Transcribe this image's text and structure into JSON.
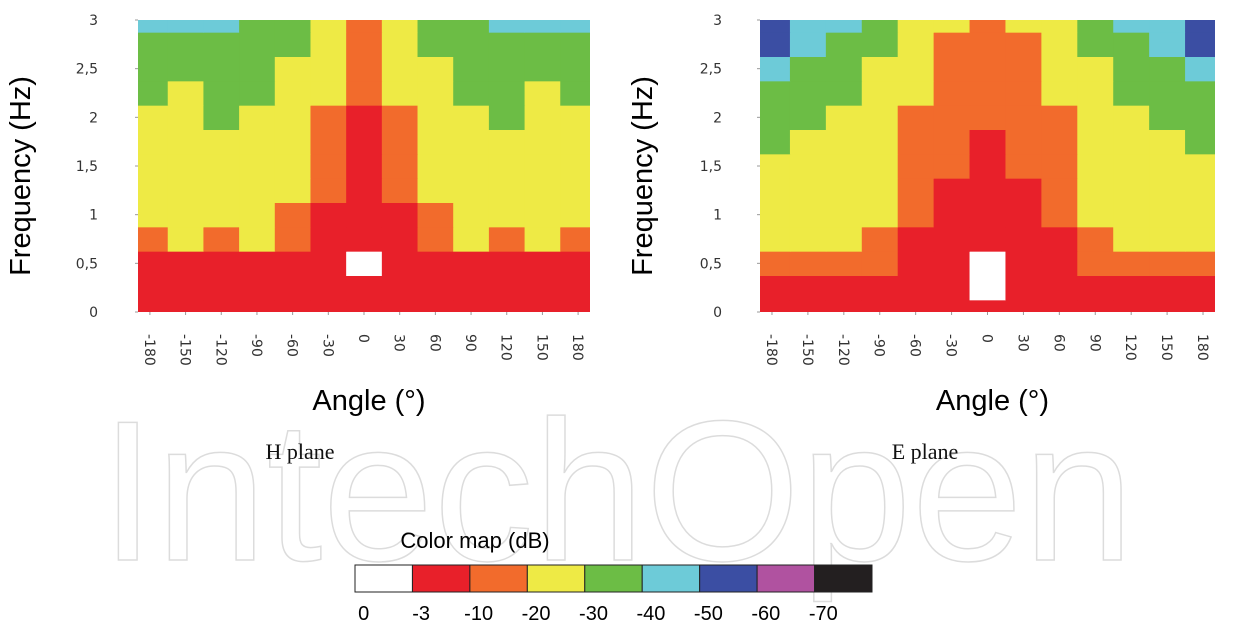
{
  "chart_data": [
    {
      "type": "heatmap",
      "subtitle": "H plane",
      "x_label": "Angle (°)",
      "y_label": "Frequency (Hz)",
      "x": [
        -180,
        -150,
        -120,
        -90,
        -60,
        -30,
        0,
        30,
        60,
        90,
        120,
        150,
        180
      ],
      "y": [
        0,
        0.25,
        0.5,
        0.75,
        1,
        1.25,
        1.5,
        1.75,
        2,
        2.25,
        2.5,
        2.75,
        3
      ],
      "values": [
        [
          -6,
          -6,
          -5,
          -5,
          -5,
          -5,
          -5,
          -5,
          -5,
          -5,
          -5,
          -6,
          -6
        ],
        [
          -5,
          -5,
          -5,
          -4,
          -4,
          -4,
          -4,
          -4,
          -4,
          -4,
          -5,
          -5,
          -5
        ],
        [
          -8,
          -8,
          -7,
          -6,
          -5,
          -4,
          -1,
          -4,
          -5,
          -6,
          -7,
          -8,
          -8
        ],
        [
          -15,
          -22,
          -18,
          -22,
          -15,
          -8,
          -4,
          -8,
          -15,
          -22,
          -18,
          -22,
          -15
        ],
        [
          -22,
          -25,
          -25,
          -25,
          -18,
          -9,
          -5,
          -9,
          -18,
          -25,
          -25,
          -25,
          -22
        ],
        [
          -25,
          -25,
          -25,
          -25,
          -22,
          -12,
          -6,
          -12,
          -22,
          -25,
          -25,
          -25,
          -25
        ],
        [
          -25,
          -27,
          -25,
          -27,
          -25,
          -15,
          -7,
          -15,
          -25,
          -27,
          -25,
          -27,
          -25
        ],
        [
          -26,
          -26,
          -26,
          -26,
          -26,
          -18,
          -8,
          -18,
          -26,
          -26,
          -26,
          -26,
          -26
        ],
        [
          -28,
          -26,
          -32,
          -28,
          -26,
          -18,
          -9,
          -18,
          -26,
          -28,
          -32,
          -26,
          -28
        ],
        [
          -30,
          -28,
          -32,
          -30,
          -27,
          -20,
          -12,
          -20,
          -27,
          -30,
          -32,
          -28,
          -30
        ],
        [
          -35,
          -32,
          -35,
          -32,
          -28,
          -22,
          -12,
          -22,
          -28,
          -32,
          -35,
          -32,
          -35
        ],
        [
          -38,
          -38,
          -38,
          -35,
          -30,
          -24,
          -15,
          -24,
          -30,
          -35,
          -38,
          -38,
          -38
        ],
        [
          -45,
          -45,
          -42,
          -38,
          -32,
          -25,
          -18,
          -25,
          -32,
          -38,
          -42,
          -45,
          -45
        ]
      ],
      "xlim": [
        -190,
        190
      ],
      "ylim": [
        0,
        3
      ],
      "xticks": [
        -180,
        -150,
        -120,
        -90,
        -60,
        -30,
        0,
        30,
        60,
        90,
        120,
        150,
        180
      ],
      "yticks": [
        0,
        {
          "value": 0.5,
          "label": "0,5"
        },
        1,
        {
          "value": 1.5,
          "label": "1,5"
        },
        2,
        {
          "value": 2.5,
          "label": "2,5"
        },
        3
      ]
    },
    {
      "type": "heatmap",
      "subtitle": "E plane",
      "x_label": "Angle (°)",
      "y_label": "Frequency (Hz)",
      "x": [
        -180,
        -150,
        -120,
        -90,
        -60,
        -30,
        0,
        30,
        60,
        90,
        120,
        150,
        180
      ],
      "y": [
        0,
        0.25,
        0.5,
        0.75,
        1,
        1.25,
        1.5,
        1.75,
        2,
        2.25,
        2.5,
        2.75,
        3
      ],
      "values": [
        [
          -8,
          -8,
          -6,
          -5,
          -5,
          -5,
          -5,
          -5,
          -5,
          -5,
          -6,
          -8,
          -8
        ],
        [
          -8,
          -8,
          -8,
          -6,
          -5,
          -4,
          -2,
          -4,
          -5,
          -6,
          -8,
          -8,
          -8
        ],
        [
          -18,
          -15,
          -15,
          -10,
          -6,
          -4,
          -1,
          -4,
          -6,
          -10,
          -15,
          -15,
          -18
        ],
        [
          -22,
          -25,
          -22,
          -15,
          -9,
          -5,
          -3,
          -5,
          -9,
          -15,
          -22,
          -25,
          -22
        ],
        [
          -28,
          -25,
          -25,
          -20,
          -12,
          -8,
          -5,
          -8,
          -12,
          -20,
          -25,
          -25,
          -28
        ],
        [
          -28,
          -26,
          -25,
          -22,
          -15,
          -9,
          -6,
          -9,
          -15,
          -22,
          -25,
          -26,
          -28
        ],
        [
          -28,
          -27,
          -26,
          -24,
          -16,
          -10,
          -7,
          -10,
          -16,
          -24,
          -26,
          -27,
          -28
        ],
        [
          -30,
          -28,
          -27,
          -25,
          -18,
          -12,
          -9,
          -12,
          -18,
          -25,
          -27,
          -28,
          -30
        ],
        [
          -33,
          -32,
          -28,
          -26,
          -19,
          -14,
          -10,
          -14,
          -19,
          -26,
          -28,
          -32,
          -33
        ],
        [
          -35,
          -33,
          -30,
          -27,
          -20,
          -15,
          -12,
          -15,
          -20,
          -27,
          -30,
          -33,
          -35
        ],
        [
          -40,
          -36,
          -32,
          -28,
          -22,
          -16,
          -14,
          -16,
          -22,
          -28,
          -32,
          -36,
          -40
        ],
        [
          -52,
          -42,
          -35,
          -30,
          -24,
          -18,
          -16,
          -18,
          -24,
          -30,
          -35,
          -42,
          -52
        ],
        [
          -55,
          -48,
          -40,
          -32,
          -26,
          -20,
          -18,
          -20,
          -26,
          -32,
          -40,
          -48,
          -55
        ]
      ],
      "xlim": [
        -190,
        190
      ],
      "ylim": [
        0,
        3
      ],
      "xticks": [
        -180,
        -150,
        -120,
        -90,
        -60,
        -30,
        0,
        30,
        60,
        90,
        120,
        150,
        180
      ],
      "yticks": [
        0,
        {
          "value": 0.5,
          "label": "0,5"
        },
        1,
        {
          "value": 1.5,
          "label": "1,5"
        },
        2,
        {
          "value": 2.5,
          "label": "2,5"
        },
        3
      ]
    }
  ],
  "color_map": {
    "title": "Color map (dB)",
    "levels": [
      0,
      -3,
      -10,
      -20,
      -30,
      -40,
      -50,
      -60,
      -70
    ],
    "colors": [
      "#ffffff",
      "#e8202a",
      "#f26b2c",
      "#eeea45",
      "#6cbd45",
      "#6dcbd8",
      "#3b4ea3",
      "#b052a0",
      "#231f20"
    ]
  },
  "watermark": "IntechOpen"
}
